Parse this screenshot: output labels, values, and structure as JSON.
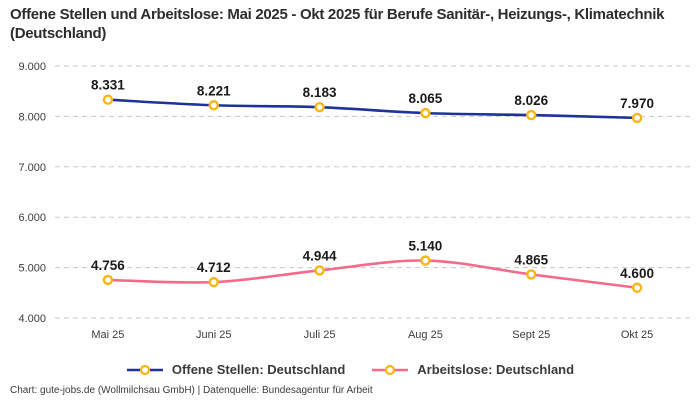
{
  "title": "Offene Stellen und Arbeitslose: Mai 2025 - Okt 2025 für Berufe Sanitär-, Heizungs-, Klimatechnik (Deutschland)",
  "footer": "Chart: gute-jobs.de (Wollmilchsau GmbH) | Datenquelle: Bundesagentur für Arbeit",
  "colors": {
    "open_positions_line": "#1e329a",
    "unemployed_line": "#f56a8a",
    "marker_ring": "#f8b515",
    "marker_fill": "#ffffff",
    "grid": "#c7c7c7",
    "title_text": "#2d2d2d",
    "data_label_text": "#1a1a1a",
    "tick_text": "#3c3c3c"
  },
  "chart_data": {
    "type": "line",
    "title": "Offene Stellen und Arbeitslose: Mai 2025 - Okt 2025 für Berufe Sanitär-, Heizungs-, Klimatechnik (Deutschland)",
    "categories": [
      "Mai 25",
      "Juni 25",
      "Juli 25",
      "Aug 25",
      "Sept 25",
      "Okt 25"
    ],
    "series": [
      {
        "name": "Offene Stellen: Deutschland",
        "color": "#1e329a",
        "values": [
          8331,
          8221,
          8183,
          8065,
          8026,
          7970
        ],
        "display_labels": [
          "8.331",
          "8.221",
          "8.183",
          "8.065",
          "8.026",
          "7.970"
        ]
      },
      {
        "name": "Arbeitslose: Deutschland",
        "color": "#f56a8a",
        "values": [
          4756,
          4712,
          4944,
          5140,
          4865,
          4600
        ],
        "display_labels": [
          "4.756",
          "4.712",
          "4.944",
          "5.140",
          "4.865",
          "4.600"
        ]
      }
    ],
    "xlabel": "",
    "ylabel": "",
    "ylim": [
      4000,
      9000
    ],
    "yticks": [
      {
        "value": 9000,
        "label": "9.000"
      },
      {
        "value": 8000,
        "label": "8.000"
      },
      {
        "value": 7000,
        "label": "7.000"
      },
      {
        "value": 6000,
        "label": "6.000"
      },
      {
        "value": 5000,
        "label": "5.000"
      },
      {
        "value": 4000,
        "label": "4.000"
      }
    ],
    "grid": "horizontal-dashed",
    "legend_position": "bottom",
    "marker": {
      "ring": "#f8b515",
      "fill": "#ffffff"
    }
  }
}
